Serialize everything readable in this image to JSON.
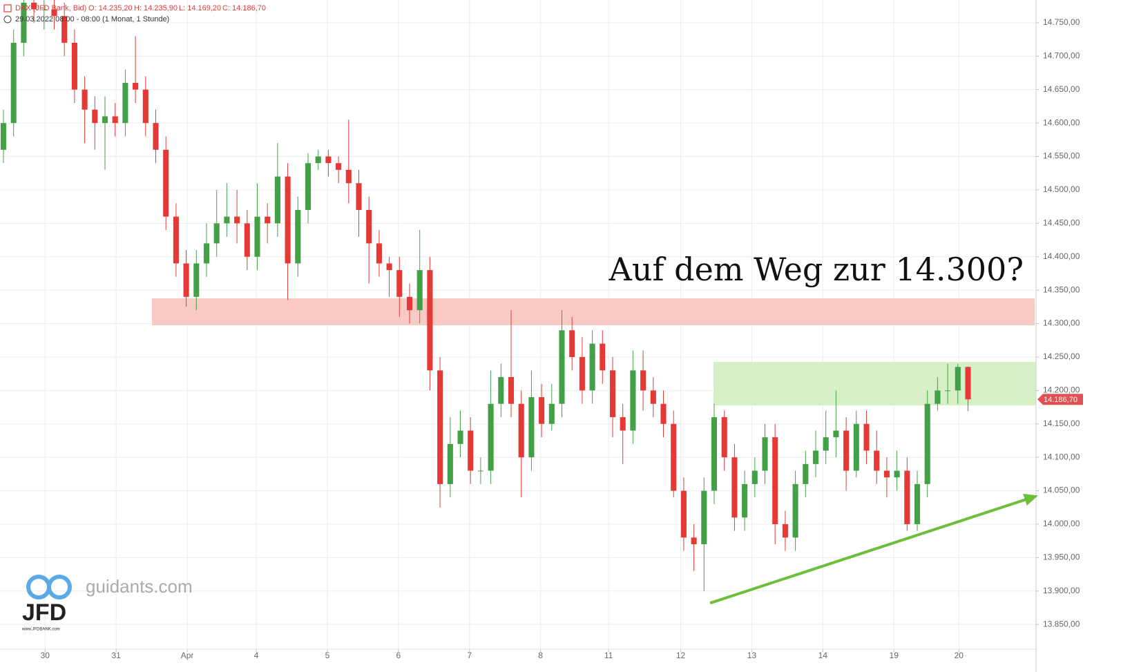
{
  "chart_data": {
    "type": "candlestick",
    "header": {
      "instrument": "DAX (JFD Bank, Bid)",
      "open": "O: 14.235,20",
      "high": "H: 14.235,90",
      "low": "L: 14.169,20",
      "close": "C: 14.186,70",
      "period": "29.03.2022 08:00 - 08:00",
      "interval": "(1 Monat, 1 Stunde)"
    },
    "annotation": "Auf dem Weg zur 14.300?",
    "watermark": {
      "site": "guidants.com",
      "brand": "JFD",
      "url": "www.JFDBANK.com"
    },
    "up_color": "#43a047",
    "down_color": "#e53935",
    "open": [
      14560,
      14600,
      14720,
      14780,
      14770,
      14770,
      14760,
      14720,
      14650,
      14620,
      14600,
      14610,
      14600,
      14660,
      14650,
      14600,
      14560,
      14460,
      14390,
      14340,
      14390,
      14420,
      14450,
      14460,
      14450,
      14400,
      14460,
      14450,
      14520,
      14390,
      14470,
      14540,
      14550,
      14540,
      14530,
      14510,
      14470,
      14420,
      14390,
      14380,
      14340,
      14320,
      14380,
      14230,
      14060,
      14120,
      14140,
      14080,
      14080,
      14180,
      14220,
      14180,
      14100,
      14190,
      14150,
      14180,
      14290,
      14250,
      14200,
      14270,
      14230,
      14160,
      14140,
      14230,
      14200,
      14180,
      14150,
      14050,
      13980,
      13970,
      14050,
      14160,
      14100,
      14010,
      14060,
      14080,
      14130,
      14000,
      13980,
      14060,
      14090,
      14110,
      14130,
      14140,
      14080,
      14150,
      14110,
      14080,
      14070,
      14080,
      14000,
      14060,
      14180,
      14200,
      14200,
      14235.2
    ],
    "high": [
      14620,
      14740,
      14800,
      14800,
      14790,
      14790,
      14780,
      14740,
      14670,
      14640,
      14640,
      14630,
      14680,
      14730,
      14670,
      14620,
      14580,
      14480,
      14410,
      14410,
      14450,
      14500,
      14510,
      14500,
      14470,
      14510,
      14480,
      14570,
      14540,
      14490,
      14555,
      14560,
      14560,
      14550,
      14605,
      14530,
      14490,
      14440,
      14400,
      14400,
      14360,
      14440,
      14400,
      14250,
      14160,
      14170,
      14160,
      14100,
      14230,
      14240,
      14320,
      14200,
      14230,
      14210,
      14210,
      14320,
      14310,
      14280,
      14290,
      14290,
      14250,
      14180,
      14260,
      14260,
      14220,
      14200,
      14170,
      14070,
      14000,
      14070,
      14180,
      14170,
      14120,
      14080,
      14100,
      14150,
      14150,
      14020,
      14080,
      14110,
      14140,
      14170,
      14200,
      14160,
      14170,
      14170,
      14140,
      14100,
      14110,
      14100,
      14080,
      14200,
      14220,
      14240,
      14240,
      14235.9
    ],
    "low": [
      14540,
      14580,
      14700,
      14750,
      14740,
      14740,
      14700,
      14630,
      14570,
      14560,
      14530,
      14580,
      14580,
      14630,
      14580,
      14540,
      14440,
      14370,
      14325,
      14320,
      14370,
      14400,
      14430,
      14420,
      14380,
      14380,
      14420,
      14430,
      14335,
      14370,
      14450,
      14530,
      14520,
      14510,
      14480,
      14430,
      14360,
      14370,
      14340,
      14310,
      14300,
      14300,
      14200,
      14025,
      14040,
      14100,
      14060,
      14060,
      14060,
      14160,
      14160,
      14040,
      14080,
      14130,
      14140,
      14160,
      14230,
      14180,
      14180,
      14210,
      14130,
      14090,
      14120,
      14170,
      14160,
      14130,
      14040,
      13960,
      13930,
      13900,
      14030,
      14080,
      13990,
      13990,
      14040,
      14060,
      13970,
      13960,
      13960,
      14040,
      14070,
      14090,
      14100,
      14050,
      14070,
      14090,
      14060,
      14040,
      14050,
      13990,
      13990,
      14040,
      14170,
      14180,
      14180,
      14169.2
    ],
    "close": [
      14600,
      14720,
      14780,
      14770,
      14770,
      14760,
      14720,
      14650,
      14620,
      14600,
      14610,
      14600,
      14660,
      14650,
      14600,
      14560,
      14460,
      14390,
      14340,
      14390,
      14420,
      14450,
      14460,
      14450,
      14400,
      14460,
      14450,
      14520,
      14390,
      14470,
      14540,
      14550,
      14540,
      14530,
      14510,
      14470,
      14420,
      14390,
      14380,
      14340,
      14320,
      14380,
      14230,
      14060,
      14120,
      14140,
      14080,
      14080,
      14180,
      14220,
      14180,
      14100,
      14190,
      14150,
      14180,
      14290,
      14250,
      14200,
      14270,
      14230,
      14160,
      14140,
      14230,
      14200,
      14180,
      14150,
      14050,
      13980,
      13970,
      14050,
      14160,
      14100,
      14010,
      14060,
      14080,
      14130,
      14000,
      13980,
      14060,
      14090,
      14110,
      14130,
      14140,
      14080,
      14150,
      14110,
      14080,
      14070,
      14080,
      14000,
      14060,
      14180,
      14200,
      14200,
      14235.2,
      14186.7
    ],
    "last_price": {
      "value": 14186.7,
      "label": "14.186,70"
    },
    "zones": [
      {
        "from": 14297.4,
        "to": 14337.7,
        "color": "#f9c9c4"
      },
      {
        "from": 14177.6,
        "to": 14242.7,
        "color": "#d6efc6"
      }
    ],
    "trendline": {
      "x": [
        69.6,
        101.9
      ],
      "y": [
        13882,
        14043
      ],
      "color": "#6cbf3a"
    },
    "xlim": [
      -0.34,
      101.7
    ],
    "ylim": [
      13813,
      14784
    ],
    "xticks": [
      {
        "value": 4.1,
        "label": "30"
      },
      {
        "value": 11.1,
        "label": "31"
      },
      {
        "value": 18.1,
        "label": "Apr"
      },
      {
        "value": 24.9,
        "label": "4"
      },
      {
        "value": 31.9,
        "label": "5"
      },
      {
        "value": 38.9,
        "label": "6"
      },
      {
        "value": 45.9,
        "label": "7"
      },
      {
        "value": 52.9,
        "label": "8"
      },
      {
        "value": 59.6,
        "label": "11"
      },
      {
        "value": 66.7,
        "label": "12"
      },
      {
        "value": 73.7,
        "label": "13"
      },
      {
        "value": 80.7,
        "label": "14"
      },
      {
        "value": 87.7,
        "label": "19"
      },
      {
        "value": 94.1,
        "label": "20"
      }
    ],
    "yticks": [
      {
        "value": 13850,
        "label": "13.850,00"
      },
      {
        "value": 13900,
        "label": "13.900,00"
      },
      {
        "value": 13950,
        "label": "13.950,00"
      },
      {
        "value": 14000,
        "label": "14.000,00"
      },
      {
        "value": 14050,
        "label": "14.050,00"
      },
      {
        "value": 14100,
        "label": "14.100,00"
      },
      {
        "value": 14150,
        "label": "14.150,00"
      },
      {
        "value": 14200,
        "label": "14.200,00"
      },
      {
        "value": 14250,
        "label": "14.250,00"
      },
      {
        "value": 14300,
        "label": "14.300,00"
      },
      {
        "value": 14350,
        "label": "14.350,00"
      },
      {
        "value": 14400,
        "label": "14.400,00"
      },
      {
        "value": 14450,
        "label": "14.450,00"
      },
      {
        "value": 14500,
        "label": "14.500,00"
      },
      {
        "value": 14550,
        "label": "14.550,00"
      },
      {
        "value": 14600,
        "label": "14.600,00"
      },
      {
        "value": 14650,
        "label": "14.650,00"
      },
      {
        "value": 14700,
        "label": "14.700,00"
      },
      {
        "value": 14750,
        "label": "14.750,00"
      }
    ],
    "grid": true
  }
}
